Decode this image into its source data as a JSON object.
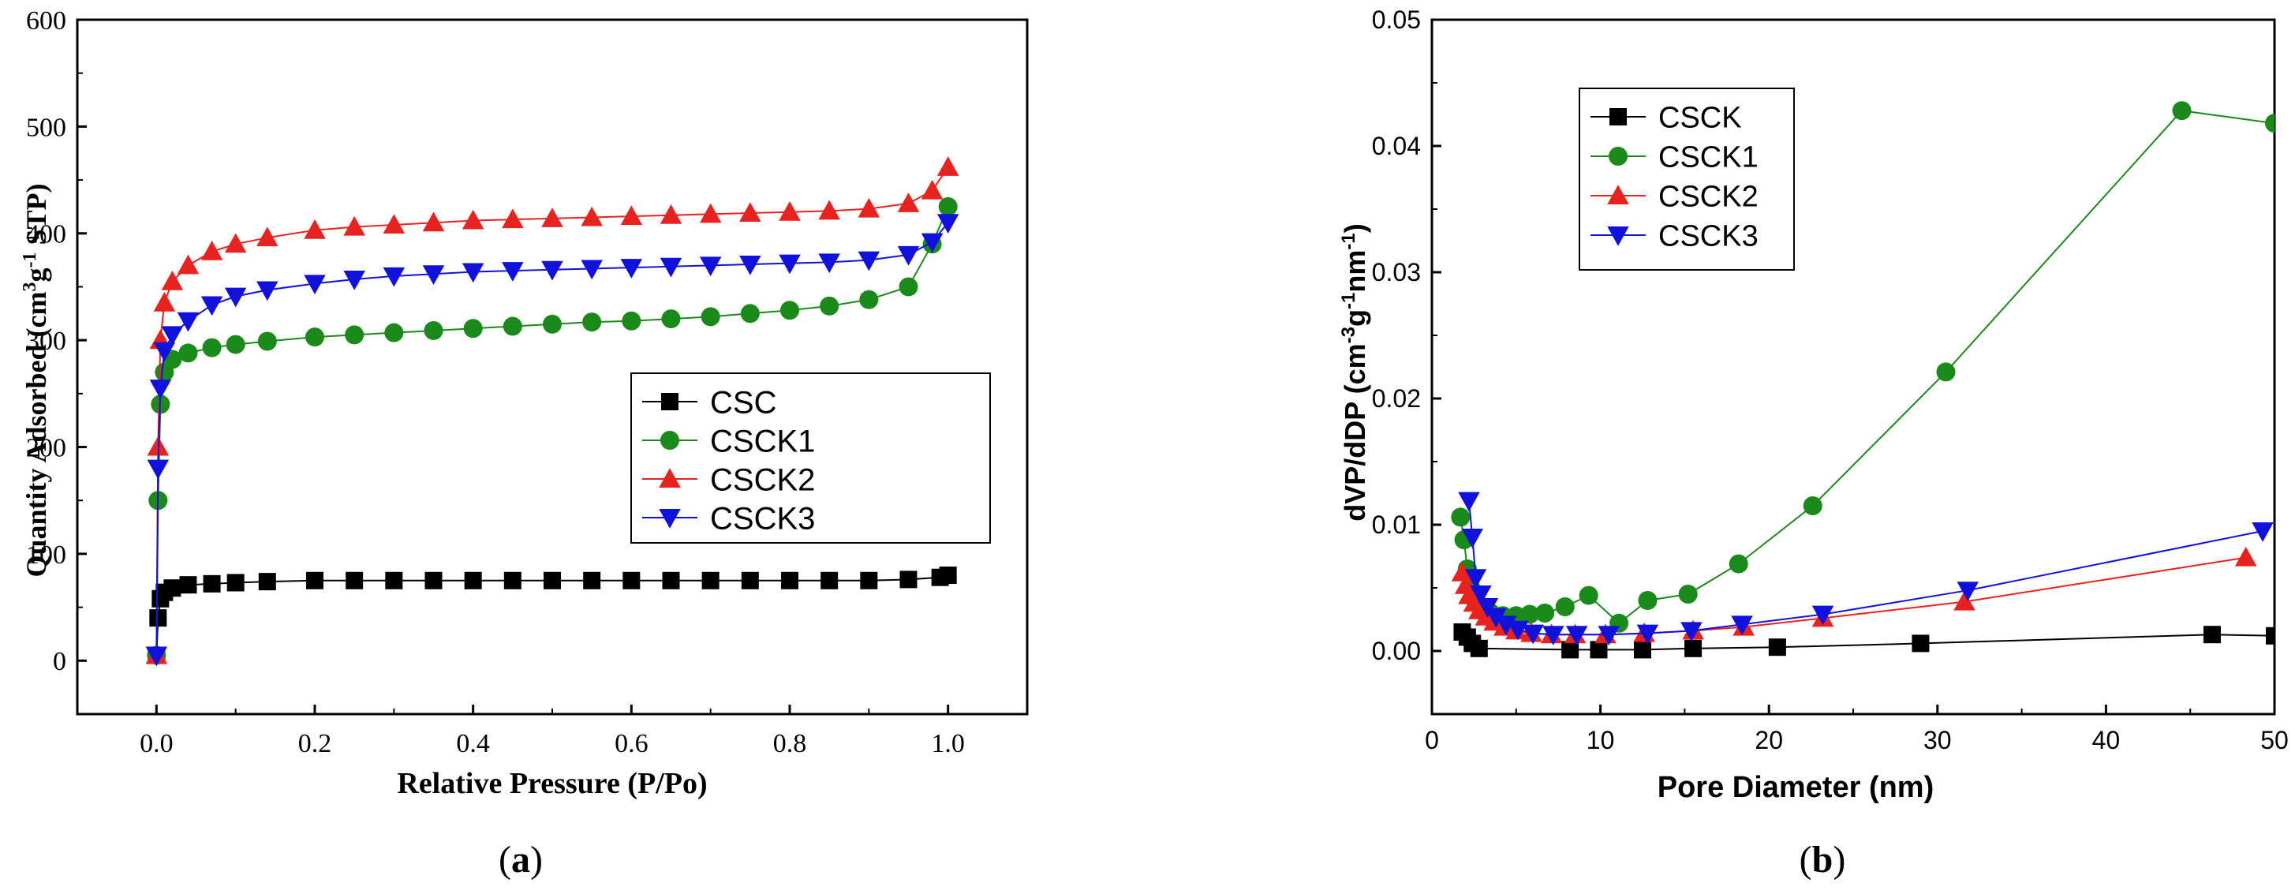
{
  "panels": [
    {
      "id": "a",
      "caption_open": "(",
      "caption_letter": "a",
      "caption_close": ")",
      "ylabel_main": "Quantity Adsorbed (cm",
      "ylabel_sup1": "3",
      "ylabel_mid": "g",
      "ylabel_sup2": "-1",
      "ylabel_end": " STP)"
    },
    {
      "id": "b",
      "caption_open": "(",
      "caption_letter": "b",
      "caption_close": ")",
      "ylabel_main": "dVP/dDP (cm",
      "ylabel_sup1": "-3",
      "ylabel_mid": "g",
      "ylabel_sup2": "-1",
      "ylabel_mid2": "nm",
      "ylabel_sup3": "-1",
      "ylabel_end": ")"
    }
  ],
  "chart_data": [
    {
      "type": "line",
      "title": "",
      "xlabel": "Relative Pressure (P/Po)",
      "ylabel": "Quantity Adsorbed (cm3g-1 STP)",
      "xlim": [
        -0.1,
        1.1
      ],
      "ylim": [
        -50,
        600
      ],
      "xticks": [
        0.0,
        0.2,
        0.4,
        0.6,
        0.8,
        1.0
      ],
      "xtick_labels": [
        "0.0",
        "0.2",
        "0.4",
        "0.6",
        "0.8",
        "1.0"
      ],
      "yticks": [
        0,
        100,
        200,
        300,
        400,
        500,
        600
      ],
      "ytick_labels": [
        "0",
        "100",
        "200",
        "300",
        "400",
        "500",
        "600"
      ],
      "legend_position": "center-right",
      "series": [
        {
          "name": "CSC",
          "color": "#000000",
          "marker": "square",
          "x": [
            0.0,
            0.002,
            0.005,
            0.01,
            0.02,
            0.04,
            0.07,
            0.1,
            0.14,
            0.2,
            0.25,
            0.3,
            0.35,
            0.4,
            0.45,
            0.5,
            0.55,
            0.6,
            0.65,
            0.7,
            0.75,
            0.8,
            0.85,
            0.9,
            0.95,
            0.99,
            1.0
          ],
          "y": [
            5,
            40,
            58,
            64,
            68,
            71,
            72,
            73,
            74,
            75,
            75,
            75,
            75,
            75,
            75,
            75,
            75,
            75,
            75,
            75,
            75,
            75,
            75,
            75,
            76,
            78,
            80
          ]
        },
        {
          "name": "CSCK1",
          "color": "#1a8a1a",
          "marker": "circle",
          "x": [
            0.0,
            0.002,
            0.005,
            0.01,
            0.02,
            0.04,
            0.07,
            0.1,
            0.14,
            0.2,
            0.25,
            0.3,
            0.35,
            0.4,
            0.45,
            0.5,
            0.55,
            0.6,
            0.65,
            0.7,
            0.75,
            0.8,
            0.85,
            0.9,
            0.95,
            0.98,
            1.0
          ],
          "y": [
            5,
            150,
            240,
            270,
            282,
            288,
            293,
            296,
            299,
            303,
            305,
            307,
            309,
            311,
            313,
            315,
            317,
            318,
            320,
            322,
            325,
            328,
            332,
            338,
            350,
            390,
            425
          ]
        },
        {
          "name": "CSCK2",
          "color": "#e8221f",
          "marker": "triangle-up",
          "x": [
            0.0,
            0.002,
            0.005,
            0.01,
            0.02,
            0.04,
            0.07,
            0.1,
            0.14,
            0.2,
            0.25,
            0.3,
            0.35,
            0.4,
            0.45,
            0.5,
            0.55,
            0.6,
            0.65,
            0.7,
            0.75,
            0.8,
            0.85,
            0.9,
            0.95,
            0.98,
            1.0
          ],
          "y": [
            5,
            200,
            300,
            335,
            355,
            370,
            383,
            390,
            396,
            403,
            406,
            408,
            410,
            412,
            413,
            414,
            415,
            416,
            417,
            418,
            419,
            420,
            421,
            423,
            428,
            440,
            462
          ]
        },
        {
          "name": "CSCK3",
          "color": "#1111dd",
          "marker": "triangle-down",
          "x": [
            0.0,
            0.002,
            0.005,
            0.01,
            0.02,
            0.04,
            0.07,
            0.1,
            0.14,
            0.2,
            0.25,
            0.3,
            0.35,
            0.4,
            0.45,
            0.5,
            0.55,
            0.6,
            0.65,
            0.7,
            0.75,
            0.8,
            0.85,
            0.9,
            0.95,
            0.98,
            1.0
          ],
          "y": [
            5,
            180,
            255,
            290,
            305,
            318,
            333,
            341,
            347,
            353,
            357,
            360,
            362,
            364,
            365,
            366,
            367,
            368,
            369,
            370,
            371,
            372,
            373,
            375,
            380,
            392,
            410
          ]
        }
      ]
    },
    {
      "type": "line",
      "title": "",
      "xlabel": "Pore Diameter (nm)",
      "ylabel": "dVP/dDP (cm-3g-1nm-1)",
      "xlim": [
        0,
        50
      ],
      "ylim": [
        -0.005,
        0.05
      ],
      "xticks": [
        0,
        10,
        20,
        30,
        40,
        50
      ],
      "xtick_labels": [
        "0",
        "10",
        "20",
        "30",
        "40",
        "50"
      ],
      "yticks": [
        0.0,
        0.01,
        0.02,
        0.03,
        0.04,
        0.05
      ],
      "ytick_labels": [
        "0.00",
        "0.01",
        "0.02",
        "0.03",
        "0.04",
        "0.05"
      ],
      "legend_position": "top-left",
      "series": [
        {
          "name": "CSCK",
          "color": "#000000",
          "marker": "square",
          "x": [
            1.8,
            2.1,
            2.4,
            2.8,
            8.2,
            9.9,
            12.5,
            15.5,
            20.5,
            29,
            46.3,
            50
          ],
          "y": [
            0.0015,
            0.0011,
            0.0006,
            0.0002,
            0.0001,
            0.0001,
            0.0001,
            0.0002,
            0.0003,
            0.0006,
            0.0013,
            0.0012
          ]
        },
        {
          "name": "CSCK1",
          "color": "#1a8a1a",
          "marker": "circle",
          "x": [
            1.7,
            1.9,
            2.1,
            2.3,
            2.6,
            3.0,
            3.5,
            4.2,
            5.0,
            5.8,
            6.7,
            7.9,
            9.3,
            11.1,
            12.8,
            15.2,
            18.2,
            22.6,
            30.5,
            44.5,
            50
          ],
          "y": [
            0.0106,
            0.0088,
            0.0065,
            0.005,
            0.004,
            0.0034,
            0.003,
            0.0028,
            0.0028,
            0.0029,
            0.003,
            0.0035,
            0.0044,
            0.0022,
            0.004,
            0.0045,
            0.0069,
            0.0115,
            0.0221,
            0.0428,
            0.0418
          ]
        },
        {
          "name": "CSCK2",
          "color": "#e8221f",
          "marker": "triangle-up",
          "x": [
            1.8,
            2.0,
            2.2,
            2.5,
            2.8,
            3.2,
            3.7,
            4.3,
            5.0,
            5.9,
            7.1,
            8.5,
            10.3,
            12.6,
            15.5,
            18.5,
            23.2,
            31.6,
            48.3
          ],
          "y": [
            0.0062,
            0.0052,
            0.0044,
            0.0038,
            0.0032,
            0.0027,
            0.0023,
            0.0019,
            0.0016,
            0.0014,
            0.0013,
            0.0013,
            0.0013,
            0.0014,
            0.0016,
            0.0019,
            0.0026,
            0.0039,
            0.0074
          ]
        },
        {
          "name": "CSCK3",
          "color": "#1111dd",
          "marker": "triangle-down",
          "x": [
            2.2,
            2.4,
            2.6,
            2.9,
            3.3,
            3.8,
            4.4,
            5.1,
            6.0,
            7.2,
            8.6,
            10.5,
            12.8,
            15.4,
            18.4,
            23.2,
            31.8,
            49.3
          ],
          "y": [
            0.0119,
            0.009,
            0.0058,
            0.0045,
            0.0035,
            0.0027,
            0.0021,
            0.0017,
            0.0014,
            0.0013,
            0.0013,
            0.0013,
            0.0014,
            0.0016,
            0.0021,
            0.0029,
            0.0048,
            0.0095
          ]
        }
      ]
    }
  ]
}
